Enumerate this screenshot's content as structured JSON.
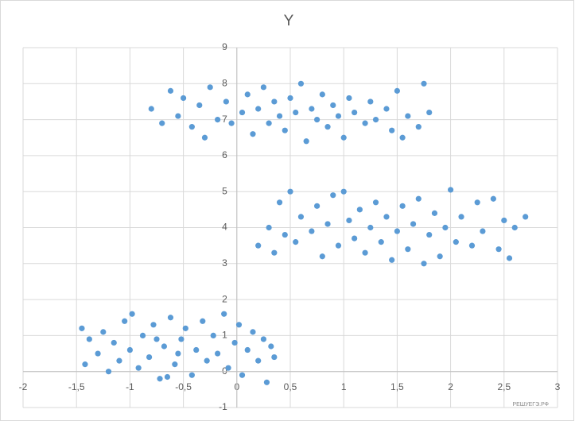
{
  "chart_data": {
    "type": "scatter",
    "title": "Y",
    "watermark": "РЕШУЕГЭ.РФ",
    "color": "#5b9bd5",
    "grid": true,
    "xlim": [
      -2,
      3
    ],
    "ylim": [
      -1,
      9
    ],
    "xticks": [
      -2,
      {
        "value": -1.5,
        "label": "-1,5"
      },
      -1,
      {
        "value": -0.5,
        "label": "-0,5"
      },
      0,
      {
        "value": 0.5,
        "label": "0,5"
      },
      1,
      {
        "value": 1.5,
        "label": "1,5"
      },
      2,
      {
        "value": 2.5,
        "label": "2,5"
      },
      3
    ],
    "yticks": [
      -1,
      0,
      1,
      2,
      3,
      4,
      5,
      6,
      7,
      8,
      9
    ],
    "x": [
      -0.8,
      -0.7,
      -0.62,
      -0.55,
      -0.5,
      -0.42,
      -0.35,
      -0.3,
      -0.25,
      -0.18,
      -0.1,
      -0.05,
      0.05,
      0.1,
      0.15,
      0.2,
      0.25,
      0.3,
      0.35,
      0.4,
      0.45,
      0.5,
      0.55,
      0.6,
      0.65,
      0.7,
      0.75,
      0.8,
      0.85,
      0.9,
      0.95,
      1.0,
      1.05,
      1.1,
      1.2,
      1.25,
      1.3,
      1.4,
      1.45,
      1.5,
      1.55,
      1.6,
      1.7,
      1.75,
      1.8,
      0.2,
      0.3,
      0.35,
      0.4,
      0.45,
      0.5,
      0.55,
      0.6,
      0.7,
      0.75,
      0.8,
      0.85,
      0.9,
      0.95,
      1.0,
      1.05,
      1.1,
      1.15,
      1.2,
      1.25,
      1.3,
      1.35,
      1.4,
      1.45,
      1.5,
      1.55,
      1.6,
      1.65,
      1.7,
      1.75,
      1.8,
      1.85,
      1.9,
      1.95,
      2.0,
      2.05,
      2.1,
      2.2,
      2.25,
      2.3,
      2.4,
      2.45,
      2.5,
      2.55,
      2.6,
      2.7,
      -1.45,
      -1.42,
      -1.38,
      -1.3,
      -1.25,
      -1.2,
      -1.15,
      -1.1,
      -1.05,
      -1.0,
      -0.98,
      -0.92,
      -0.88,
      -0.82,
      -0.78,
      -0.72,
      -0.68,
      -0.62,
      -0.58,
      -0.52,
      -0.48,
      -0.42,
      -0.38,
      -0.32,
      -0.28,
      -0.22,
      -0.18,
      -0.12,
      -0.08,
      -0.02,
      0.02,
      0.05,
      0.1,
      0.15,
      0.2,
      0.25,
      0.28,
      0.32,
      0.35,
      -0.65,
      -0.75,
      -0.55
    ],
    "values": [
      7.3,
      6.9,
      7.8,
      7.1,
      7.6,
      6.8,
      7.4,
      6.5,
      7.9,
      7.0,
      7.5,
      6.9,
      7.2,
      7.7,
      6.6,
      7.3,
      7.9,
      6.9,
      7.5,
      7.1,
      6.7,
      7.6,
      7.2,
      8.0,
      6.4,
      7.3,
      7.0,
      7.7,
      6.8,
      7.4,
      7.1,
      6.5,
      7.6,
      7.2,
      6.9,
      7.5,
      7.0,
      7.3,
      6.7,
      7.8,
      6.5,
      7.1,
      6.8,
      8.0,
      7.2,
      3.5,
      4.0,
      3.3,
      4.7,
      3.8,
      5.0,
      3.6,
      4.3,
      3.9,
      4.6,
      3.2,
      4.1,
      4.9,
      3.5,
      5.0,
      4.2,
      3.7,
      4.5,
      3.3,
      4.0,
      4.7,
      3.6,
      4.3,
      3.1,
      3.9,
      4.6,
      3.4,
      4.1,
      4.8,
      3.0,
      3.8,
      4.4,
      3.2,
      4.0,
      5.05,
      3.6,
      4.3,
      3.5,
      4.7,
      3.9,
      4.8,
      3.4,
      4.2,
      3.15,
      4.0,
      4.3,
      1.2,
      0.2,
      0.9,
      0.5,
      1.1,
      0.0,
      0.8,
      0.3,
      1.4,
      0.6,
      1.6,
      0.1,
      1.0,
      0.4,
      1.3,
      -0.2,
      0.7,
      1.5,
      0.2,
      0.9,
      1.2,
      -0.1,
      0.6,
      1.4,
      0.3,
      1.0,
      0.5,
      1.6,
      0.1,
      0.8,
      1.3,
      -0.1,
      0.6,
      1.1,
      0.3,
      0.9,
      -0.3,
      0.7,
      0.4,
      -0.15,
      0.9,
      0.5
    ]
  }
}
